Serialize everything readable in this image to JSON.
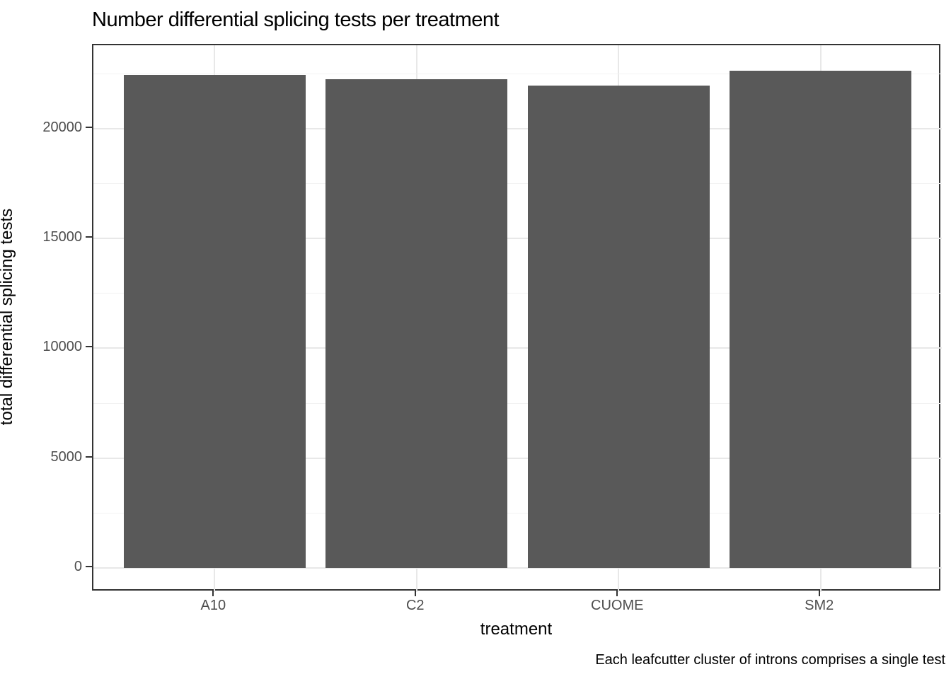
{
  "title": "Number differential splicing tests per treatment",
  "caption": "Each leafcutter cluster of introns comprises a single test",
  "chart_data": {
    "type": "bar",
    "title": "Number differential splicing tests per treatment",
    "xlabel": "treatment",
    "ylabel": "total differential splicing tests",
    "caption": "Each leafcutter cluster of introns comprises a single test",
    "categories": [
      "A10",
      "C2",
      "CUOME",
      "SM2"
    ],
    "values": [
      22450,
      22250,
      21950,
      22650
    ],
    "ylim": [
      -1100,
      23800
    ],
    "y_major_ticks": [
      0,
      5000,
      10000,
      15000,
      20000
    ],
    "y_tick_labels": [
      "0",
      "5000",
      "10000",
      "15000",
      "20000"
    ],
    "y_minor_ticks": [
      2500,
      7500,
      12500,
      17500,
      22500
    ],
    "grid": true,
    "legend": "none",
    "bar_color": "#595959",
    "panel_border_color": "#333333",
    "grid_major_color": "#e8e8e8",
    "grid_minor_color": "#f2f2f2",
    "axis_text_color": "#4d4d4d",
    "tick_color": "#333333"
  }
}
